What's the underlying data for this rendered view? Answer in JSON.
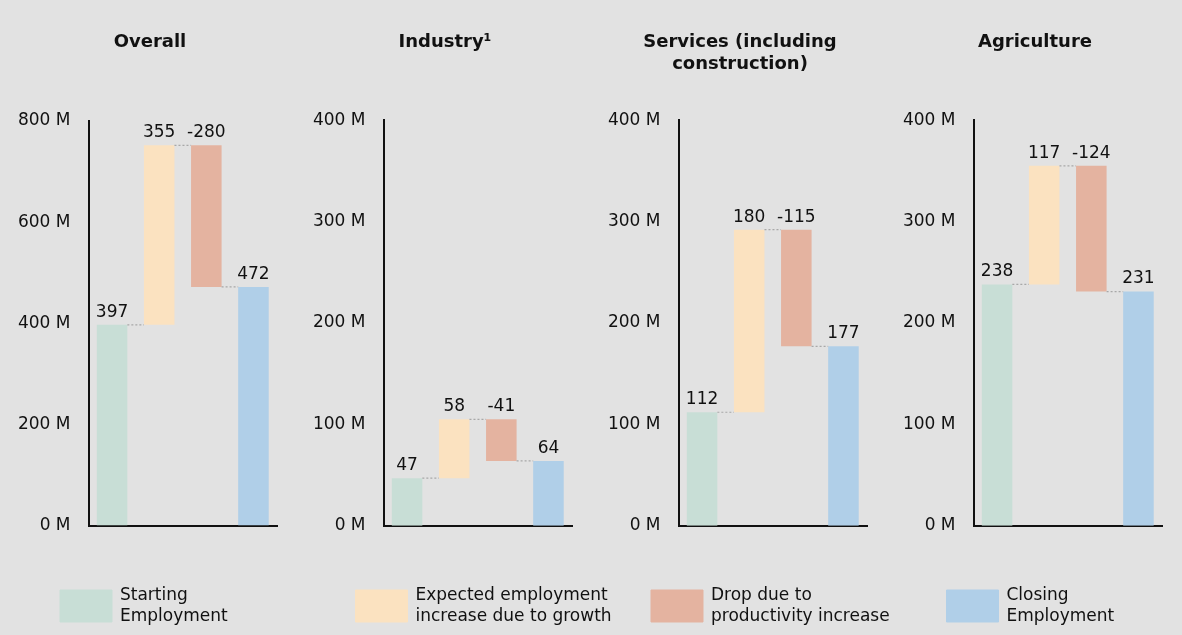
{
  "chart_data": [
    {
      "type": "bar",
      "title": "Overall",
      "categories": [
        null,
        null,
        null,
        null
      ],
      "ylim": [
        0,
        800
      ],
      "yticks": [
        {
          "value": 0,
          "label": "0 M"
        },
        {
          "value": 200,
          "label": "200 M"
        },
        {
          "value": 400,
          "label": "400 M"
        },
        {
          "value": 600,
          "label": "600 M"
        },
        {
          "value": 800,
          "label": "800 M"
        }
      ],
      "grid": false,
      "legend": "bottom",
      "data_labels": true,
      "series": [
        {
          "name": "Starting Employment",
          "color": "#c8ded6",
          "values": [
            397,
            null,
            null,
            null
          ],
          "base": [
            0,
            null,
            null,
            null
          ]
        },
        {
          "name": "Expected employment increase due to growth",
          "color": "#fbe2c0",
          "values": [
            null,
            355,
            null,
            null
          ],
          "base": [
            null,
            397,
            null,
            null
          ]
        },
        {
          "name": "Drop due to productivity increase",
          "color": "#e4b3a0",
          "values": [
            null,
            null,
            -280,
            null
          ],
          "base": [
            null,
            null,
            752,
            null
          ]
        },
        {
          "name": "Closing Employment",
          "color": "#b0cfe8",
          "values": [
            null,
            null,
            null,
            472
          ],
          "base": [
            null,
            null,
            null,
            0
          ]
        }
      ]
    },
    {
      "type": "bar",
      "title": "Industry¹",
      "categories": [
        null,
        null,
        null,
        null
      ],
      "ylim": [
        0,
        400
      ],
      "yticks": [
        {
          "value": 0,
          "label": "0 M"
        },
        {
          "value": 100,
          "label": "100 M"
        },
        {
          "value": 200,
          "label": "200 M"
        },
        {
          "value": 300,
          "label": "300 M"
        },
        {
          "value": 400,
          "label": "400 M"
        }
      ],
      "grid": false,
      "data_labels": true,
      "series": [
        {
          "color": "#c8ded6",
          "values": [
            47,
            null,
            null,
            null
          ],
          "base": [
            0,
            null,
            null,
            null
          ]
        },
        {
          "color": "#fbe2c0",
          "values": [
            null,
            58,
            null,
            null
          ],
          "base": [
            null,
            47,
            null,
            null
          ]
        },
        {
          "color": "#e4b3a0",
          "values": [
            null,
            null,
            -41,
            null
          ],
          "base": [
            null,
            null,
            105,
            null
          ]
        },
        {
          "color": "#b0cfe8",
          "values": [
            null,
            null,
            null,
            64
          ],
          "base": [
            null,
            null,
            null,
            0
          ]
        }
      ]
    },
    {
      "type": "bar",
      "title": "Services (including construction)",
      "categories": [
        null,
        null,
        null,
        null
      ],
      "ylim": [
        0,
        400
      ],
      "yticks": [
        {
          "value": 0,
          "label": "0 M"
        },
        {
          "value": 100,
          "label": "100 M"
        },
        {
          "value": 200,
          "label": "200 M"
        },
        {
          "value": 300,
          "label": "300 M"
        },
        {
          "value": 400,
          "label": "400 M"
        }
      ],
      "grid": false,
      "data_labels": true,
      "series": [
        {
          "color": "#c8ded6",
          "values": [
            112,
            null,
            null,
            null
          ],
          "base": [
            0,
            null,
            null,
            null
          ]
        },
        {
          "color": "#fbe2c0",
          "values": [
            null,
            180,
            null,
            null
          ],
          "base": [
            null,
            112,
            null,
            null
          ]
        },
        {
          "color": "#e4b3a0",
          "values": [
            null,
            null,
            -115,
            null
          ],
          "base": [
            null,
            null,
            292,
            null
          ]
        },
        {
          "color": "#b0cfe8",
          "values": [
            null,
            null,
            null,
            177
          ],
          "base": [
            null,
            null,
            null,
            0
          ]
        }
      ]
    },
    {
      "type": "bar",
      "title": "Agriculture",
      "categories": [
        null,
        null,
        null,
        null
      ],
      "ylim": [
        0,
        400
      ],
      "yticks": [
        {
          "value": 0,
          "label": "0 M"
        },
        {
          "value": 100,
          "label": "100 M"
        },
        {
          "value": 200,
          "label": "200 M"
        },
        {
          "value": 300,
          "label": "300 M"
        },
        {
          "value": 400,
          "label": "400 M"
        }
      ],
      "grid": false,
      "data_labels": true,
      "series": [
        {
          "color": "#c8ded6",
          "values": [
            238,
            null,
            null,
            null
          ],
          "base": [
            0,
            null,
            null,
            null
          ]
        },
        {
          "color": "#fbe2c0",
          "values": [
            null,
            117,
            null,
            null
          ],
          "base": [
            null,
            238,
            null,
            null
          ]
        },
        {
          "color": "#e4b3a0",
          "values": [
            null,
            null,
            -124,
            null
          ],
          "base": [
            null,
            null,
            355,
            null
          ]
        },
        {
          "color": "#b0cfe8",
          "values": [
            null,
            null,
            null,
            231
          ],
          "base": [
            null,
            null,
            null,
            0
          ]
        }
      ]
    }
  ]
}
